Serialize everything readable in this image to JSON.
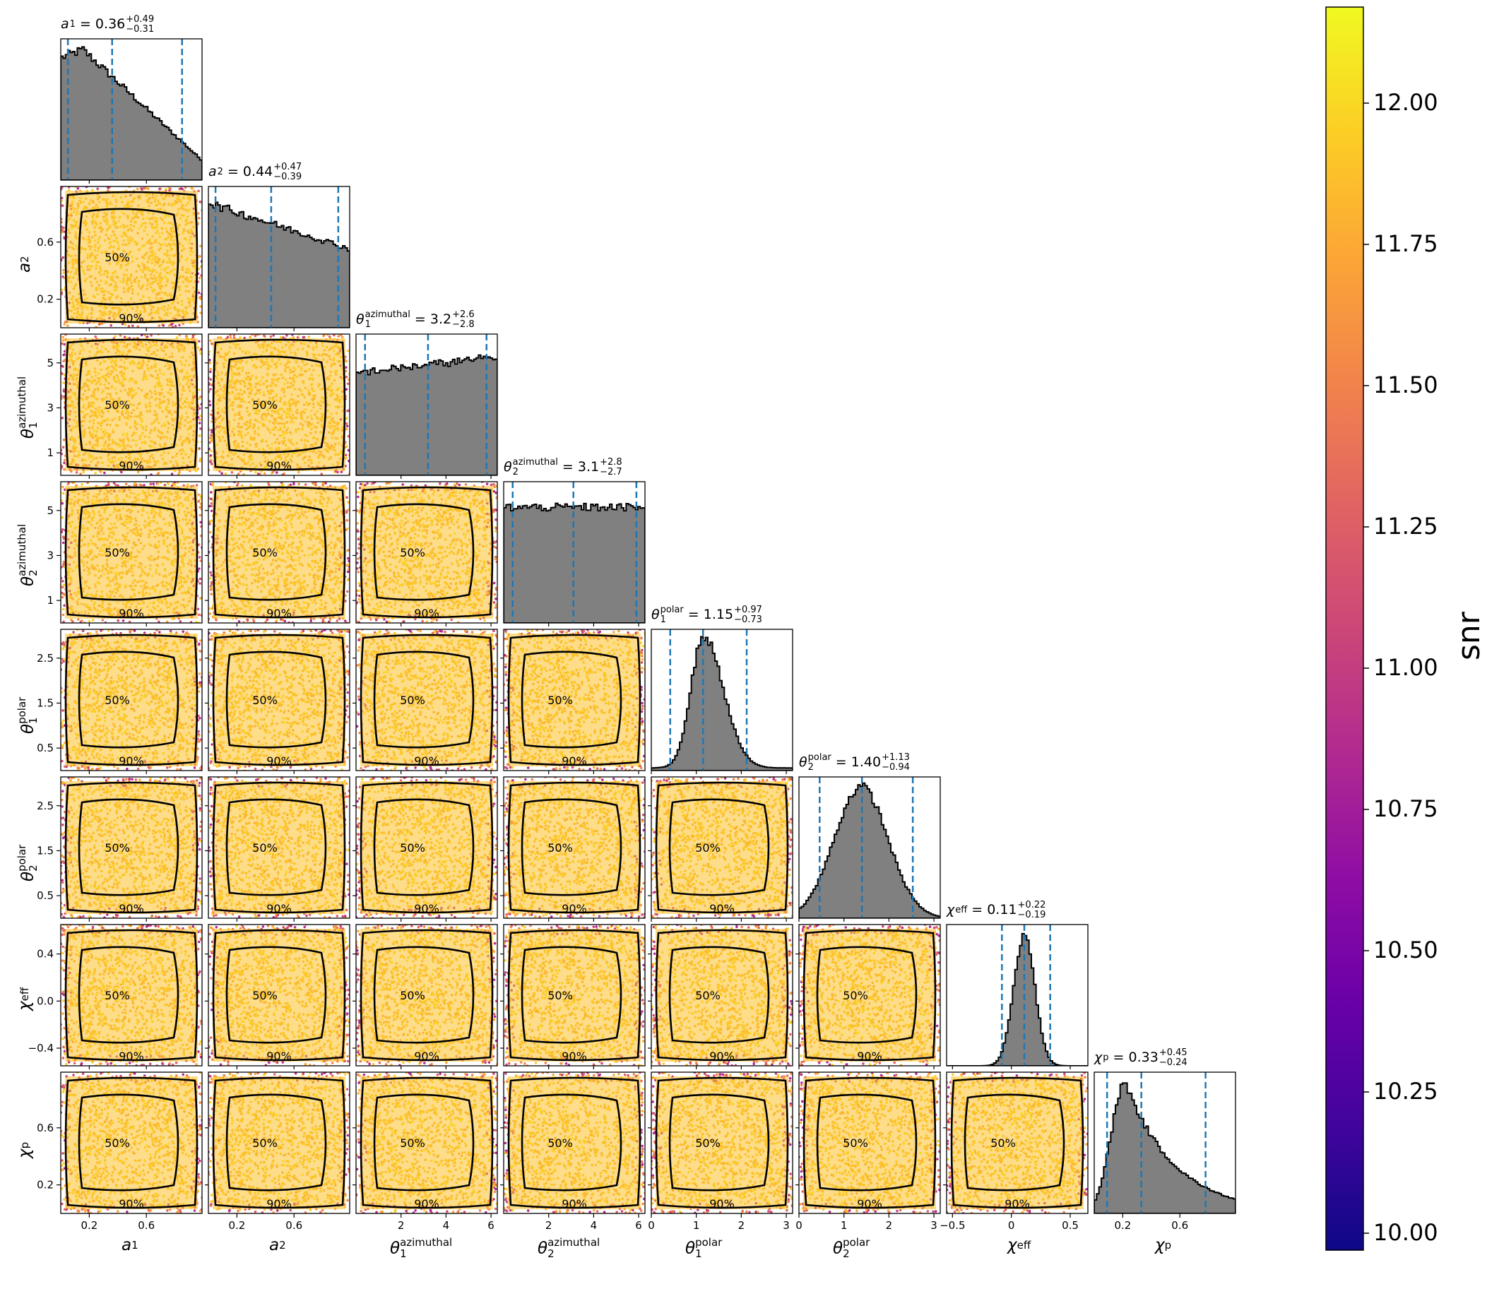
{
  "chart_data": {
    "type": "corner",
    "colorbar": {
      "label": "snr",
      "ticks": [
        "10.00",
        "10.25",
        "10.50",
        "10.75",
        "11.00",
        "11.25",
        "11.50",
        "11.75",
        "12.00"
      ],
      "range": [
        9.97,
        12.17
      ],
      "colormap": "plasma"
    },
    "contour_levels": [
      "50%",
      "90%"
    ],
    "quantile_line_color": "#1f77b4",
    "hist_fill_color": "#808080",
    "parameters": [
      {
        "key": "a1",
        "label": "a",
        "sub": "1",
        "median": 0.36,
        "plus": "+0.49",
        "minus": "−0.31",
        "median_text": "0.36",
        "range": [
          0.0,
          0.99
        ],
        "ticks": [
          "0.2",
          "0.6"
        ],
        "tick_values": [
          0.2,
          0.6
        ]
      },
      {
        "key": "a2",
        "label": "a",
        "sub": "2",
        "median": 0.44,
        "plus": "+0.47",
        "minus": "−0.39",
        "median_text": "0.44",
        "range": [
          0.0,
          0.99
        ],
        "ticks": [
          "0.2",
          "0.6"
        ],
        "tick_values": [
          0.2,
          0.6
        ]
      },
      {
        "key": "theta1_az",
        "label": "θ",
        "sub": "1",
        "sup": "azimuthal",
        "median": 3.2,
        "plus": "+2.6",
        "minus": "−2.8",
        "median_text": "3.2",
        "range": [
          0.0,
          6.28
        ],
        "ticks": [
          "1",
          "3",
          "5"
        ],
        "tick_values": [
          1,
          3,
          5
        ],
        "x_ticks": [
          "2",
          "4",
          "6"
        ],
        "x_tick_values": [
          2,
          4,
          6
        ]
      },
      {
        "key": "theta2_az",
        "label": "θ",
        "sub": "2",
        "sup": "azimuthal",
        "median": 3.1,
        "plus": "+2.8",
        "minus": "−2.7",
        "median_text": "3.1",
        "range": [
          0.0,
          6.28
        ],
        "ticks": [
          "1",
          "3",
          "5"
        ],
        "tick_values": [
          1,
          3,
          5
        ],
        "x_ticks": [
          "2",
          "4",
          "6"
        ],
        "x_tick_values": [
          2,
          4,
          6
        ]
      },
      {
        "key": "theta1_pol",
        "label": "θ",
        "sub": "1",
        "sup": "polar",
        "median": 1.15,
        "plus": "+0.97",
        "minus": "−0.73",
        "median_text": "1.15",
        "range": [
          0.0,
          3.14
        ],
        "ticks": [
          "0.5",
          "1.5",
          "2.5"
        ],
        "tick_values": [
          0.5,
          1.5,
          2.5
        ],
        "x_ticks": [
          "0",
          "1",
          "2",
          "3"
        ],
        "x_tick_values": [
          0,
          1,
          2,
          3
        ]
      },
      {
        "key": "theta2_pol",
        "label": "θ",
        "sub": "2",
        "sup": "polar",
        "median": 1.4,
        "plus": "+1.13",
        "minus": "−0.94",
        "median_text": "1.40",
        "range": [
          0.0,
          3.14
        ],
        "ticks": [
          "0.5",
          "1.5",
          "2.5"
        ],
        "tick_values": [
          0.5,
          1.5,
          2.5
        ],
        "x_ticks": [
          "0",
          "1",
          "2",
          "3"
        ],
        "x_tick_values": [
          0,
          1,
          2,
          3
        ]
      },
      {
        "key": "chi_eff",
        "label": "χ",
        "sub": "eff",
        "median": 0.11,
        "plus": "+0.22",
        "minus": "−0.19",
        "median_text": "0.11",
        "range": [
          -0.55,
          0.65
        ],
        "ticks": [
          "−0.4",
          "0.0",
          "0.4"
        ],
        "tick_values": [
          -0.4,
          0.0,
          0.4
        ],
        "x_ticks": [
          "−0.5",
          "0",
          "0.5"
        ],
        "x_tick_values": [
          -0.5,
          0,
          0.5
        ]
      },
      {
        "key": "chi_p",
        "label": "χ",
        "sub": "p",
        "median": 0.33,
        "plus": "+0.45",
        "minus": "−0.24",
        "median_text": "0.33",
        "range": [
          0.0,
          0.99
        ],
        "ticks": [
          "0.2",
          "0.6"
        ],
        "tick_values": [
          0.2,
          0.6
        ]
      }
    ]
  }
}
